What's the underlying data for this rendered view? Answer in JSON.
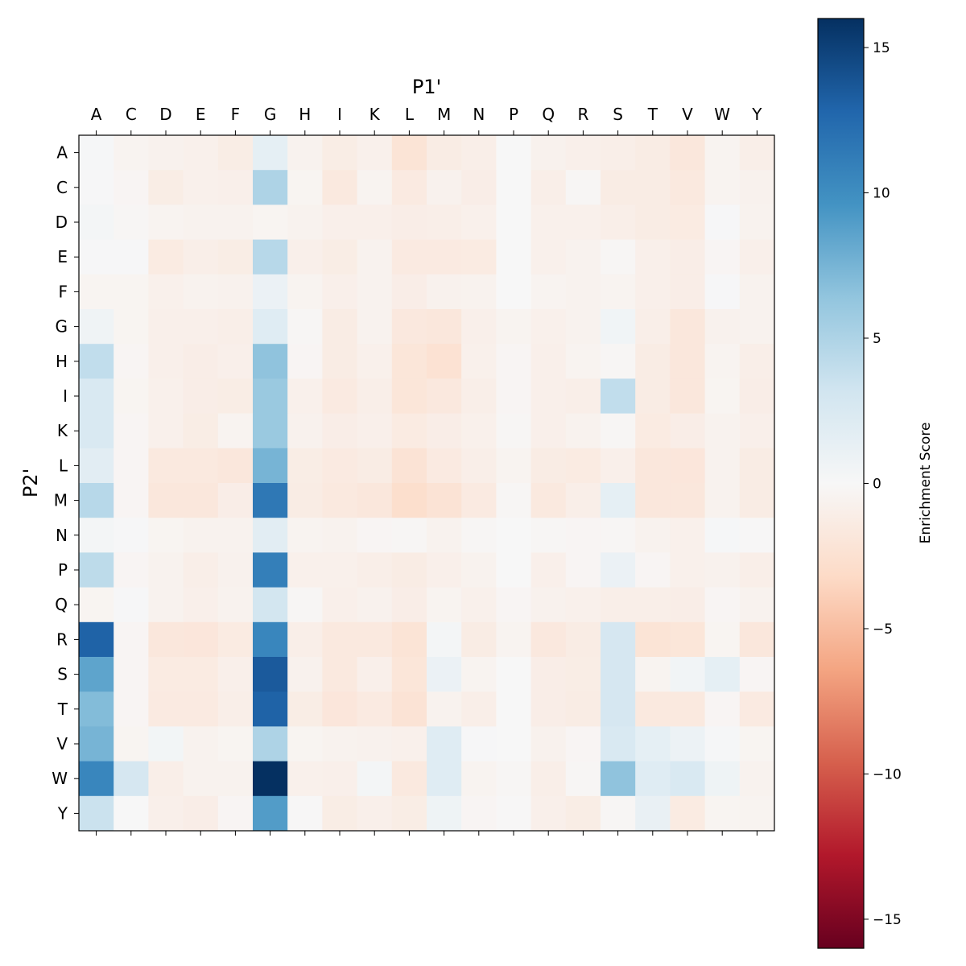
{
  "chart_data": {
    "type": "heatmap",
    "title": "",
    "xlabel": "P1'",
    "ylabel": "P2'",
    "x_categories": [
      "A",
      "C",
      "D",
      "E",
      "F",
      "G",
      "H",
      "I",
      "K",
      "L",
      "M",
      "N",
      "P",
      "Q",
      "R",
      "S",
      "T",
      "V",
      "W",
      "Y"
    ],
    "y_categories": [
      "A",
      "C",
      "D",
      "E",
      "F",
      "G",
      "H",
      "I",
      "K",
      "L",
      "M",
      "N",
      "P",
      "Q",
      "R",
      "S",
      "T",
      "V",
      "W",
      "Y"
    ],
    "colormap": "RdBu",
    "colormap_stops": [
      "#67001f",
      "#b2182b",
      "#d6604d",
      "#f4a582",
      "#fddbc7",
      "#f7f7f7",
      "#d1e5f0",
      "#92c5de",
      "#4393c3",
      "#2166ac",
      "#053061"
    ],
    "vmin": -16,
    "vmax": 16,
    "colorbar": {
      "label": "Enrichment Score",
      "ticks": [
        15,
        10,
        5,
        0,
        -5,
        -10,
        -15
      ],
      "tick_labels": [
        "15",
        "10",
        "5",
        "0",
        "−5",
        "−10",
        "−15"
      ]
    },
    "values": [
      [
        0.2,
        -0.5,
        -0.7,
        -0.8,
        -1.2,
        1.5,
        -0.6,
        -1.2,
        -0.8,
        -2.2,
        -1.3,
        -1.0,
        0,
        -0.7,
        -0.9,
        -1.0,
        -1.3,
        -1.8,
        -0.5,
        -1.0
      ],
      [
        0.1,
        -0.3,
        -1.2,
        -0.8,
        -0.9,
        5.0,
        -0.4,
        -1.6,
        -0.5,
        -1.5,
        -0.7,
        -1.1,
        0,
        -1.0,
        -0.2,
        -1.3,
        -1.3,
        -1.6,
        -0.5,
        -0.7
      ],
      [
        0.3,
        -0.2,
        -0.5,
        -0.6,
        -0.6,
        -0.4,
        -0.6,
        -0.9,
        -0.9,
        -1.1,
        -1.0,
        -0.8,
        0,
        -0.8,
        -0.8,
        -1.0,
        -1.3,
        -1.4,
        0.1,
        -0.6
      ],
      [
        0.1,
        0.1,
        -1.4,
        -1.0,
        -1.2,
        4.5,
        -0.9,
        -1.2,
        -0.6,
        -1.5,
        -1.5,
        -1.4,
        0,
        -0.8,
        -0.6,
        -0.2,
        -0.9,
        -1.1,
        -0.3,
        -0.9
      ],
      [
        -0.4,
        -0.4,
        -0.8,
        -0.6,
        -0.7,
        1.0,
        -0.5,
        -0.9,
        -0.6,
        -1.1,
        -0.7,
        -0.6,
        0,
        -0.5,
        -0.6,
        -0.5,
        -0.9,
        -1.1,
        0.1,
        -0.6
      ],
      [
        0.7,
        -0.4,
        -0.9,
        -0.9,
        -1.0,
        2.0,
        -0.2,
        -1.3,
        -0.6,
        -1.7,
        -1.8,
        -0.9,
        -0.5,
        -0.8,
        -0.6,
        0.6,
        -1.0,
        -1.8,
        -0.7,
        -0.6
      ],
      [
        4.0,
        -0.3,
        -0.9,
        -1.1,
        -0.9,
        6.5,
        -0.3,
        -1.3,
        -0.8,
        -2.0,
        -2.4,
        -0.8,
        -0.3,
        -0.9,
        -0.5,
        -0.2,
        -1.3,
        -1.8,
        -0.5,
        -1.0
      ],
      [
        2.5,
        -0.4,
        -0.8,
        -1.1,
        -1.2,
        6.0,
        -0.8,
        -1.5,
        -1.0,
        -2.0,
        -1.7,
        -1.0,
        -0.3,
        -0.9,
        -1.0,
        4.0,
        -1.3,
        -1.8,
        -0.4,
        -1.1
      ],
      [
        2.5,
        -0.3,
        -0.8,
        -1.2,
        -0.5,
        6.0,
        -0.7,
        -1.1,
        -0.9,
        -1.4,
        -1.1,
        -0.8,
        -0.2,
        -0.9,
        -0.6,
        -0.2,
        -1.4,
        -1.1,
        -0.6,
        -0.9
      ],
      [
        1.8,
        -0.3,
        -1.6,
        -1.6,
        -1.8,
        7.5,
        -1.2,
        -1.5,
        -1.3,
        -2.3,
        -1.5,
        -1.0,
        -0.5,
        -1.3,
        -1.4,
        -0.9,
        -1.8,
        -1.9,
        -0.6,
        -1.3
      ],
      [
        4.5,
        -0.3,
        -1.8,
        -1.8,
        -1.1,
        11.5,
        -1.3,
        -1.6,
        -1.8,
        -2.8,
        -2.3,
        -1.5,
        -0.2,
        -1.6,
        -1.0,
        1.5,
        -1.8,
        -1.8,
        -0.6,
        -1.3
      ],
      [
        0.3,
        0.1,
        -0.4,
        -0.6,
        -0.6,
        1.8,
        -0.5,
        -0.6,
        -0.3,
        -0.2,
        -0.6,
        -0.2,
        0,
        -0.2,
        -0.3,
        -0.2,
        -0.6,
        -0.8,
        0.2,
        -0.1
      ],
      [
        4.2,
        -0.3,
        -0.6,
        -1.0,
        -0.7,
        11.0,
        -0.8,
        -0.8,
        -1.0,
        -1.3,
        -0.9,
        -0.6,
        0,
        -0.9,
        -0.3,
        1.0,
        -0.3,
        -0.8,
        -0.7,
        -1.0
      ],
      [
        -0.4,
        0.1,
        -0.6,
        -0.9,
        -0.6,
        3.0,
        -0.2,
        -0.9,
        -0.7,
        -1.1,
        -0.5,
        -0.8,
        -0.3,
        -0.7,
        -0.8,
        -1.0,
        -1.0,
        -1.1,
        -0.3,
        -0.6
      ],
      [
        13.0,
        -0.3,
        -1.8,
        -1.9,
        -1.4,
        10.5,
        -1.0,
        -1.6,
        -1.6,
        -2.2,
        0.3,
        -1.3,
        -0.5,
        -1.7,
        -1.3,
        2.8,
        -2.2,
        -2.0,
        -0.4,
        -1.8
      ],
      [
        8.5,
        -0.3,
        -1.4,
        -1.4,
        -0.9,
        13.5,
        -0.7,
        -1.6,
        -0.9,
        -2.0,
        1.0,
        -0.5,
        0,
        -1.1,
        -1.2,
        2.8,
        -0.5,
        0.5,
        1.5,
        -0.3
      ],
      [
        7.0,
        -0.3,
        -1.5,
        -1.5,
        -1.0,
        13.0,
        -1.2,
        -1.9,
        -1.5,
        -2.3,
        -0.6,
        -1.0,
        0,
        -1.1,
        -1.3,
        2.8,
        -1.6,
        -1.6,
        -0.3,
        -1.5
      ],
      [
        7.5,
        -0.4,
        0.4,
        -0.6,
        -0.4,
        5.0,
        -0.4,
        -0.6,
        -0.7,
        -0.8,
        2.0,
        0.1,
        0,
        -0.7,
        -0.3,
        2.5,
        1.5,
        0.9,
        0.2,
        -0.4
      ],
      [
        10.5,
        2.8,
        -1.0,
        -0.6,
        -0.6,
        16.0,
        -0.8,
        -0.9,
        0.3,
        -1.6,
        2.0,
        -0.5,
        -0.2,
        -1.0,
        -0.2,
        6.5,
        2.0,
        2.5,
        0.8,
        -0.6
      ],
      [
        3.5,
        0,
        -0.9,
        -1.1,
        -0.3,
        9.0,
        -0.1,
        -1.2,
        -0.9,
        -1.2,
        0.8,
        -0.3,
        -0.1,
        -0.9,
        -1.2,
        -0.2,
        1.2,
        -1.4,
        -0.4,
        -0.5
      ]
    ]
  }
}
